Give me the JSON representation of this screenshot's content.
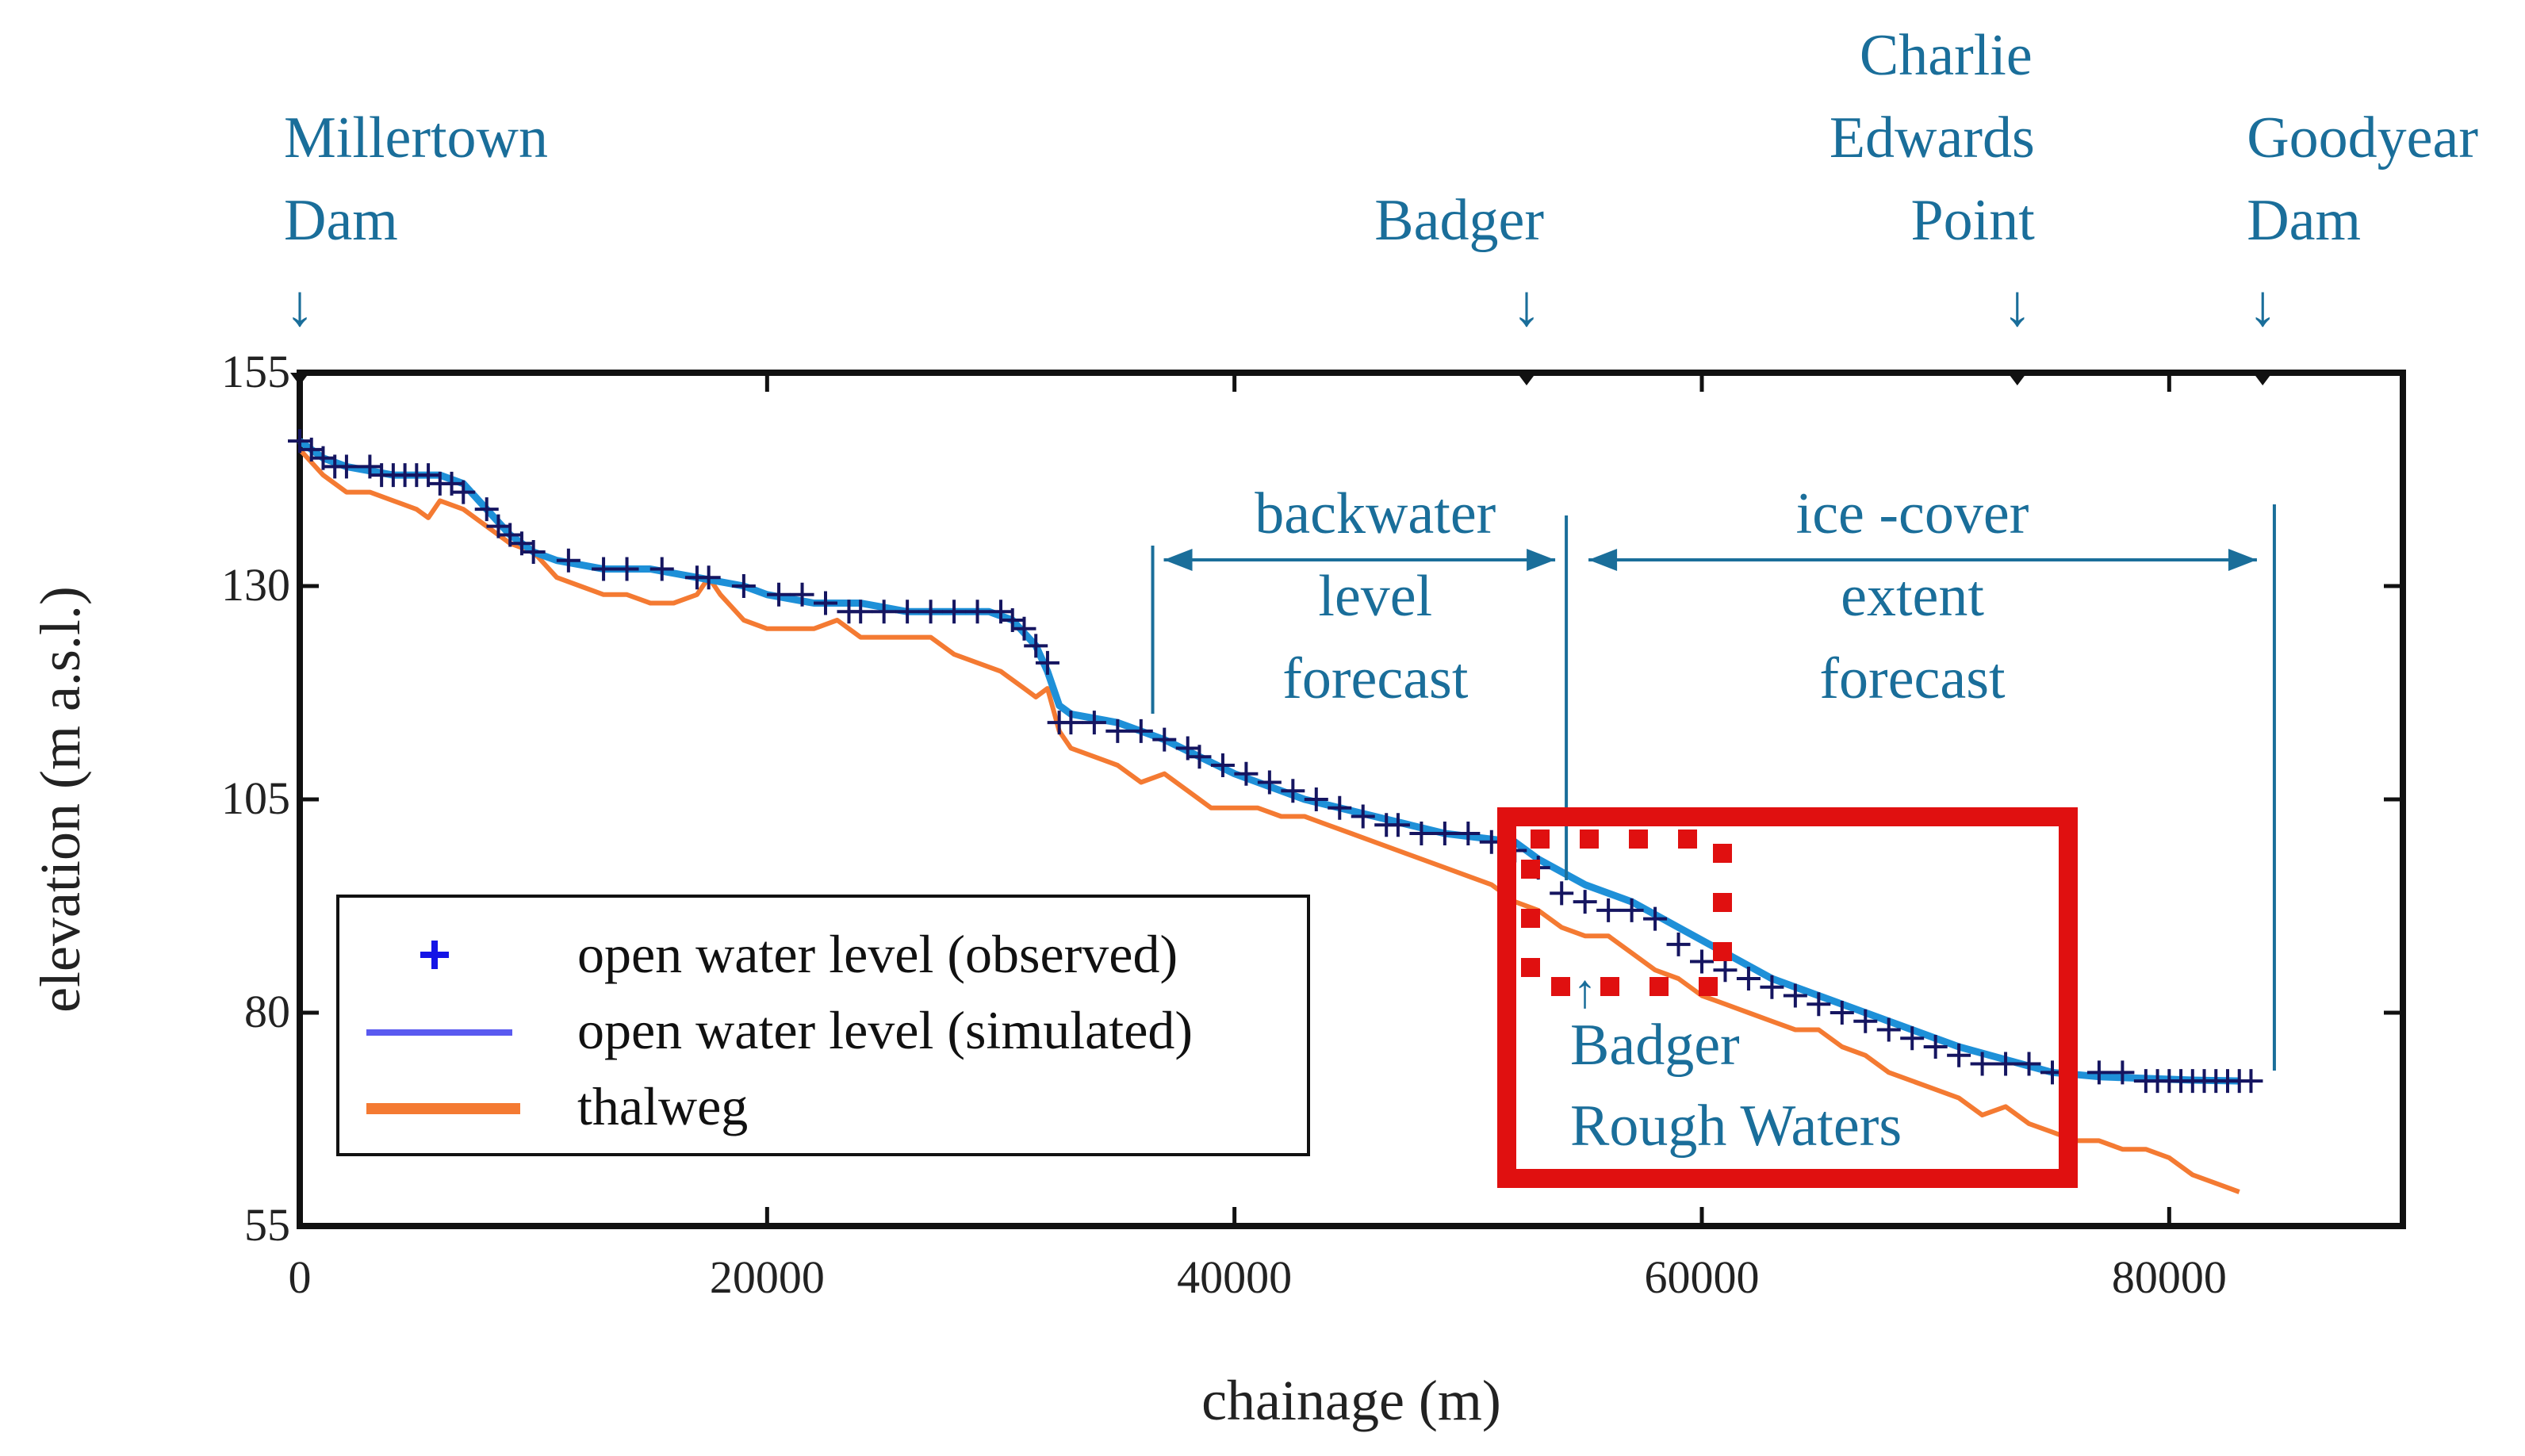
{
  "chart_data": {
    "type": "line",
    "xlabel": "chainage (m)",
    "ylabel": "elevation (m a.s.l.)",
    "xlim": [
      0,
      90000
    ],
    "ylim": [
      55,
      155
    ],
    "x_ticks": [
      0,
      20000,
      40000,
      60000,
      80000
    ],
    "x_tick_labels": [
      "0",
      "20000",
      "40000",
      "60000",
      "80000"
    ],
    "y_ticks": [
      55,
      80,
      105,
      130,
      155
    ],
    "y_tick_labels": [
      "55",
      "80",
      "105",
      "130",
      "155"
    ],
    "grid": false,
    "legend_position": "bottom-left",
    "colors": {
      "observed": "#1414e6",
      "simulated": "#5a5af0",
      "simulated_plot": "#1e90d8",
      "thalweg": "#f47a32",
      "annotation": "#1a6e9a",
      "highlight": "#e01010"
    },
    "series": [
      {
        "name": "open water level (observed)",
        "marker": "+",
        "x": [
          0,
          500,
          1000,
          1500,
          2000,
          3000,
          3500,
          4000,
          4500,
          5000,
          5500,
          6000,
          6500,
          7000,
          8000,
          8500,
          9000,
          9500,
          10000,
          11500,
          13000,
          14000,
          15500,
          17000,
          17500,
          19000,
          20500,
          21500,
          22500,
          23500,
          24000,
          25000,
          26000,
          27000,
          28000,
          29000,
          30000,
          30500,
          31000,
          31500,
          32000,
          32500,
          33000,
          34000,
          35000,
          36000,
          37000,
          38000,
          38500,
          39500,
          40500,
          41500,
          42500,
          43500,
          44500,
          45500,
          46500,
          47000,
          48000,
          49000,
          50000,
          51000,
          52000,
          53000,
          54000,
          55000,
          56000,
          57000,
          58000,
          59000,
          60000,
          61000,
          62000,
          63000,
          64000,
          65000,
          66000,
          67000,
          68000,
          69000,
          70000,
          71000,
          72000,
          73000,
          74000,
          75000,
          77000,
          78000,
          79000,
          79500,
          80000,
          80500,
          81000,
          81500,
          82000,
          82500,
          83000,
          83500
        ],
        "y": [
          147,
          146,
          145,
          144,
          144,
          144,
          143,
          143,
          143,
          143,
          143,
          142,
          142,
          141,
          139,
          137,
          136,
          135,
          134,
          133,
          132,
          132,
          132,
          131,
          131,
          130,
          129,
          129,
          128,
          127,
          127,
          127,
          127,
          127,
          127,
          127,
          127,
          126,
          125,
          123,
          121,
          114,
          114,
          114,
          113,
          113,
          112,
          111,
          110,
          109,
          108,
          107,
          106,
          105,
          104,
          103,
          102,
          102,
          101,
          101,
          101,
          100,
          99,
          97,
          94,
          93,
          92,
          92,
          91,
          88,
          86,
          85,
          84,
          83,
          82,
          81,
          80,
          79,
          78,
          77,
          76,
          75,
          74,
          74,
          74,
          73,
          73,
          73,
          72,
          72,
          72,
          72,
          72,
          72,
          72,
          72,
          72,
          72
        ]
      },
      {
        "name": "open water level (simulated)",
        "x": [
          0,
          1000,
          2000,
          4000,
          6000,
          7000,
          8000,
          9000,
          10000,
          11000,
          13000,
          15000,
          17000,
          19000,
          20000,
          22000,
          24000,
          26000,
          28000,
          29500,
          30500,
          31500,
          32000,
          32500,
          33000,
          35000,
          37000,
          40000,
          43000,
          46000,
          49000,
          52000,
          53000,
          55000,
          57000,
          59000,
          61000,
          63000,
          65000,
          67000,
          69000,
          71000,
          73000,
          75000,
          77000,
          79000,
          81000,
          83000
        ],
        "y": [
          147,
          145,
          144,
          143,
          143,
          142,
          139,
          136,
          134,
          133,
          132,
          132,
          131,
          130,
          129,
          128,
          128,
          127,
          127,
          127,
          126,
          123,
          120,
          116,
          115,
          114,
          112,
          108,
          105,
          103,
          101,
          100,
          98,
          95,
          93,
          90,
          87,
          84,
          82,
          80,
          78,
          76,
          74.5,
          73,
          72.5,
          72.3,
          72.1,
          72
        ]
      },
      {
        "name": "thalweg",
        "x": [
          0,
          1000,
          2000,
          3000,
          4000,
          5000,
          5500,
          6000,
          7000,
          8000,
          9000,
          10000,
          11000,
          12000,
          13000,
          14000,
          15000,
          16000,
          17000,
          17500,
          18000,
          19000,
          20000,
          21000,
          22000,
          23000,
          24000,
          25000,
          26000,
          27000,
          28000,
          29000,
          30000,
          31000,
          31500,
          32000,
          32500,
          33000,
          34000,
          35000,
          36000,
          37000,
          38000,
          39000,
          40000,
          41000,
          42000,
          43000,
          44000,
          45000,
          46000,
          47000,
          48000,
          49000,
          50000,
          51000,
          52000,
          53000,
          54000,
          55000,
          56000,
          57000,
          58000,
          59000,
          60000,
          61000,
          62000,
          63000,
          64000,
          65000,
          66000,
          67000,
          68000,
          69000,
          70000,
          71000,
          72000,
          73000,
          74000,
          75000,
          76000,
          77000,
          78000,
          79000,
          80000,
          81000,
          82000,
          83000
        ],
        "y": [
          146,
          143,
          141,
          141,
          140,
          139,
          138,
          140,
          139,
          137,
          135,
          134,
          131,
          130,
          129,
          129,
          128,
          128,
          129,
          131,
          129,
          126,
          125,
          125,
          125,
          126,
          124,
          124,
          124,
          124,
          122,
          121,
          120,
          118,
          117,
          118,
          113,
          111,
          110,
          109,
          107,
          108,
          106,
          104,
          104,
          104,
          103,
          103,
          102,
          101,
          100,
          99,
          98,
          97,
          96,
          95,
          93,
          92,
          90,
          89,
          89,
          87,
          85,
          84,
          82,
          81,
          80,
          79,
          78,
          78,
          76,
          75,
          73,
          72,
          71,
          70,
          68,
          69,
          67,
          66,
          65,
          65,
          64,
          64,
          63,
          61,
          60,
          59
        ]
      }
    ],
    "top_markers": [
      {
        "label": "Millertown Dam",
        "lines": [
          "Millertown",
          "Dam"
        ],
        "x": 0
      },
      {
        "label": "Badger",
        "lines": [
          "Badger"
        ],
        "x": 52500
      },
      {
        "label": "Charlie Edwards Point",
        "lines": [
          "Charlie",
          "Edwards",
          "Point"
        ],
        "x": 73500
      },
      {
        "label": "Goodyear Dam",
        "lines": [
          "Goodyear",
          "Dam"
        ],
        "x": 84000
      }
    ],
    "ranges": [
      {
        "label": "backwater level forecast",
        "lines": [
          "backwater",
          "level",
          "forecast"
        ],
        "x_start": 36500,
        "x_end": 54200
      },
      {
        "label": "ice-cover extent forecast",
        "lines": [
          "ice -cover",
          "extent",
          "forecast"
        ],
        "x_start": 54200,
        "x_end": 84500
      }
    ],
    "annotation_badger_rough": {
      "lines": [
        "Badger",
        "Rough  Waters"
      ],
      "x": 55000,
      "y": 95
    },
    "arrow_glyph": "↓",
    "small_arrow_glyph": "↑"
  }
}
